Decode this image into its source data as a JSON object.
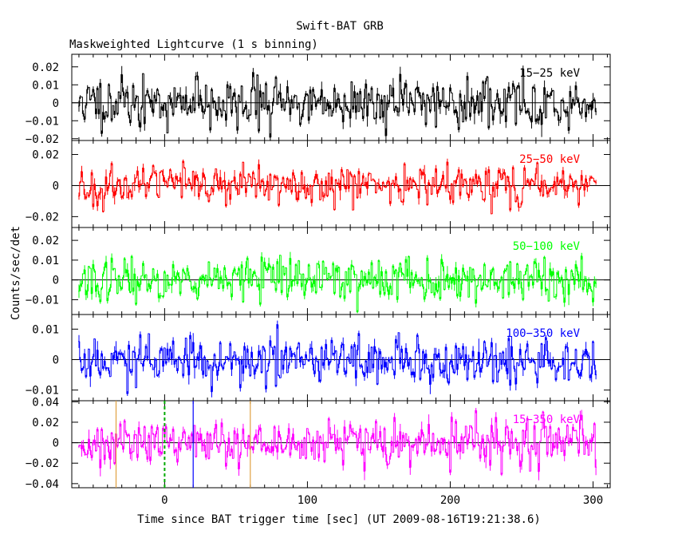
{
  "chart_data": {
    "type": "line",
    "title": "Swift-BAT GRB",
    "subtitle": "Maskweighted Lightcurve (1 s binning)",
    "xlabel": "Time since BAT trigger time [sec] (UT 2009-08-16T19:21:38.6)",
    "ylabel": "Counts/sec/det",
    "xlim": [
      -65,
      312
    ],
    "x_ticks": [
      0,
      100,
      200,
      300
    ],
    "x_tick_labels": [
      "0",
      "100",
      "200",
      "300"
    ],
    "binning_s": 1,
    "t_start": -60,
    "t_end": 302,
    "panels": [
      {
        "band": "15−25 keV",
        "color": "#000000",
        "ylim": [
          -0.021,
          0.027
        ],
        "y_ticks": [
          -0.02,
          -0.01,
          0,
          0.01,
          0.02
        ],
        "y_tick_labels": [
          "−0.02",
          "−0.01",
          "0",
          "0.01",
          "0.02"
        ],
        "noise_sigma": 0.0068,
        "seed": 11
      },
      {
        "band": "25−50 keV",
        "color": "#ff0000",
        "ylim": [
          -0.027,
          0.029
        ],
        "y_ticks": [
          -0.02,
          0,
          0.02
        ],
        "y_tick_labels": [
          "−0.02",
          "0",
          "0.02"
        ],
        "noise_sigma": 0.0062,
        "seed": 23
      },
      {
        "band": "50−100 keV",
        "color": "#00ff00",
        "ylim": [
          -0.0175,
          0.0265
        ],
        "y_ticks": [
          -0.01,
          0,
          0.01,
          0.02
        ],
        "y_tick_labels": [
          "−0.01",
          "0",
          "0.01",
          "0.02"
        ],
        "noise_sigma": 0.0052,
        "seed": 37
      },
      {
        "band": "100−350 keV",
        "color": "#0000ff",
        "ylim": [
          -0.0135,
          0.0148
        ],
        "y_ticks": [
          -0.01,
          0,
          0.01
        ],
        "y_tick_labels": [
          "−0.01",
          "0",
          "0.01"
        ],
        "noise_sigma": 0.0042,
        "seed": 53
      },
      {
        "band": "15−350 keV",
        "color": "#ff00ff",
        "ylim": [
          -0.044,
          0.041
        ],
        "y_ticks": [
          -0.04,
          -0.02,
          0,
          0.02,
          0.04
        ],
        "y_tick_labels": [
          "−0.04",
          "−0.02",
          "0",
          "0.02",
          "0.04"
        ],
        "noise_sigma": 0.0115,
        "seed": 71
      }
    ],
    "markers": [
      {
        "t": -34,
        "color": "#e0a040",
        "style": "solid"
      },
      {
        "t": 0,
        "color": "#00aa00",
        "style": "dashed"
      },
      {
        "t": 20,
        "color": "#0000ff",
        "style": "solid"
      },
      {
        "t": 60,
        "color": "#e0a040",
        "style": "solid"
      }
    ]
  }
}
